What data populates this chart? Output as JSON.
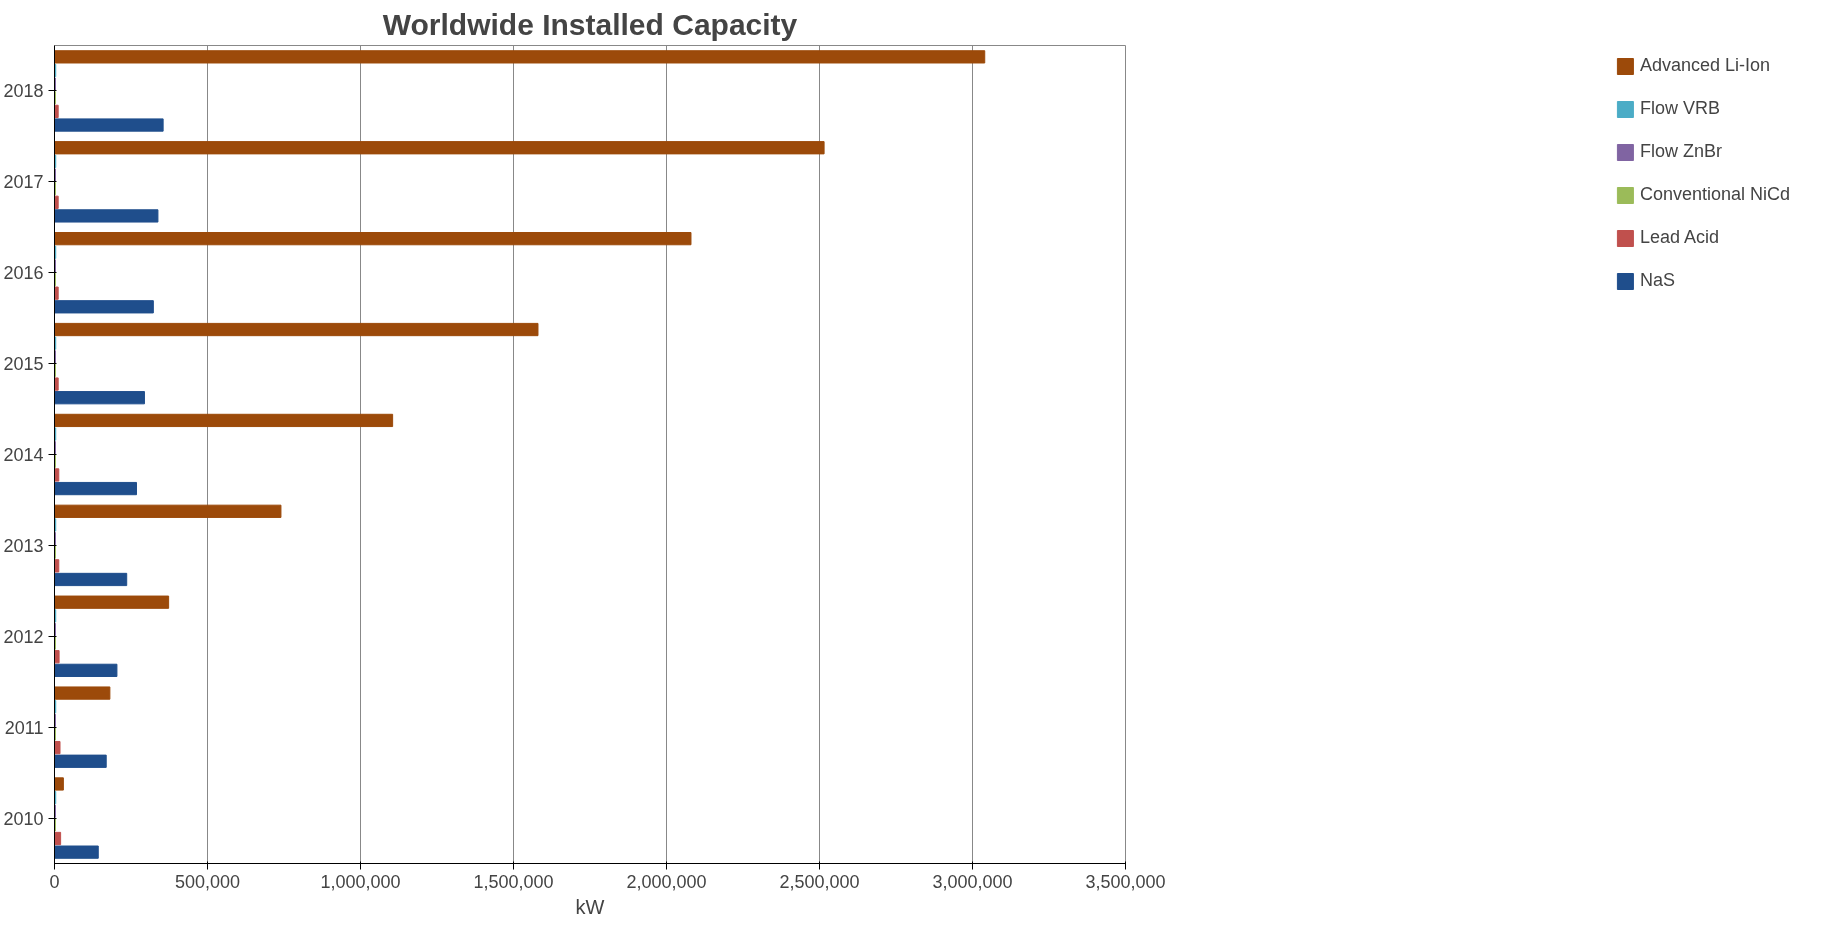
{
  "chart_data": {
    "type": "bar",
    "orientation": "horizontal",
    "title": "Worldwide Installed Capacity",
    "xlabel": "kW",
    "categories": [
      "2018",
      "2017",
      "2016",
      "2015",
      "2014",
      "2013",
      "2012",
      "2011",
      "2010"
    ],
    "series": [
      {
        "name": "NaS",
        "color": "#1f4e8c",
        "values": [
          355000,
          338000,
          323000,
          294000,
          268000,
          236000,
          204000,
          169000,
          143000
        ]
      },
      {
        "name": "Lead Acid",
        "color": "#c0504d",
        "values": [
          12000,
          12000,
          12000,
          12000,
          14000,
          14000,
          15000,
          18000,
          20000
        ]
      },
      {
        "name": "Conventional NiCd",
        "color": "#9bbb59",
        "values": [
          3000,
          3000,
          3000,
          3000,
          3000,
          3000,
          3000,
          3000,
          3000
        ]
      },
      {
        "name": "Flow ZnBr",
        "color": "#8064a2",
        "values": [
          3000,
          3000,
          3000,
          3000,
          3000,
          3000,
          3000,
          3000,
          3000
        ]
      },
      {
        "name": "Flow VRB",
        "color": "#4bacc6",
        "values": [
          4000,
          4000,
          4000,
          4000,
          4000,
          4000,
          4000,
          4000,
          4000
        ]
      },
      {
        "name": "Advanced Li-Ion",
        "color": "#9c4a0a",
        "values": [
          3040000,
          2515000,
          2080000,
          1580000,
          1105000,
          740000,
          373000,
          181000,
          29000
        ]
      }
    ],
    "xlim": [
      0,
      3500000
    ],
    "xticks": [
      0,
      {
        "value": 500000,
        "label": "500,000"
      },
      {
        "value": 1000000,
        "label": "1,000,000"
      },
      {
        "value": 1500000,
        "label": "1,500,000"
      },
      {
        "value": 2000000,
        "label": "2,000,000"
      },
      {
        "value": 2500000,
        "label": "2,500,000"
      },
      {
        "value": 3000000,
        "label": "3,000,000"
      },
      {
        "value": 3500000,
        "label": "3,500,000"
      }
    ],
    "grid": "x",
    "legend": "right"
  }
}
